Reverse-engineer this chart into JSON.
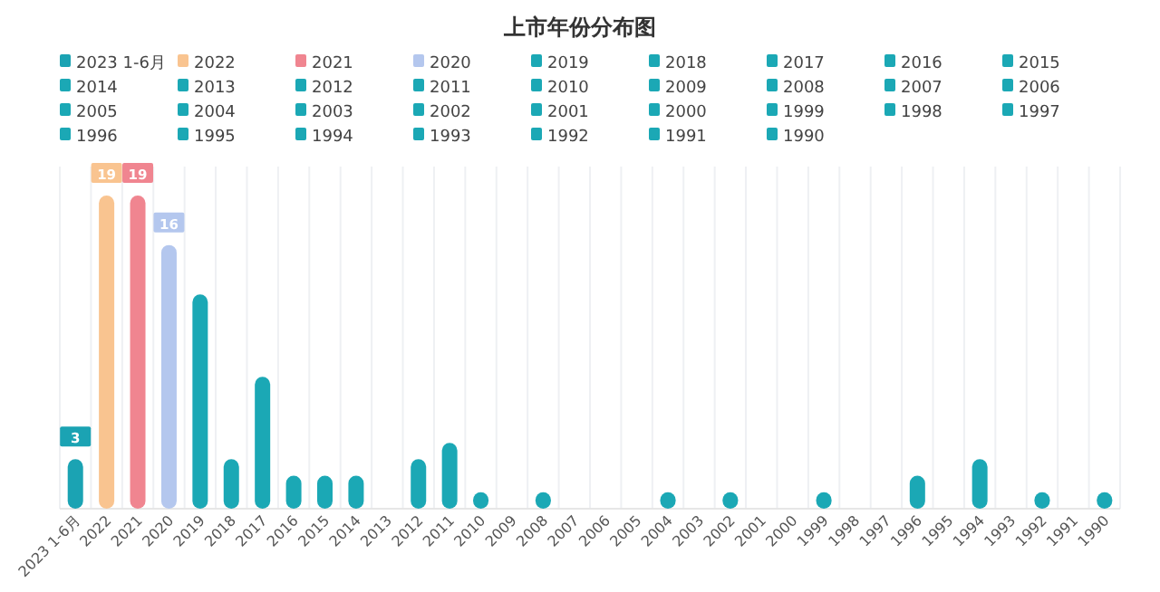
{
  "chart_data": {
    "type": "bar",
    "title": "上市年份分布图",
    "categories": [
      "2023 1-6月",
      "2022",
      "2021",
      "2020",
      "2019",
      "2018",
      "2017",
      "2016",
      "2015",
      "2014",
      "2013",
      "2012",
      "2011",
      "2010",
      "2009",
      "2008",
      "2007",
      "2006",
      "2005",
      "2004",
      "2003",
      "2002",
      "2001",
      "2000",
      "1999",
      "1998",
      "1997",
      "1996",
      "1995",
      "1994",
      "1993",
      "1992",
      "1991",
      "1990"
    ],
    "series": [
      {
        "name": "2023 1-6月",
        "color": "#1ba3b3",
        "values": [
          3,
          null,
          null,
          null,
          null,
          null,
          null,
          null,
          null,
          null,
          null,
          null,
          null,
          null,
          null,
          null,
          null,
          null,
          null,
          null,
          null,
          null,
          null,
          null,
          null,
          null,
          null,
          null,
          null,
          null,
          null,
          null,
          null,
          null
        ],
        "value_labels": [
          "3",
          null,
          null,
          null,
          null,
          null,
          null,
          null,
          null,
          null,
          null,
          null,
          null,
          null,
          null,
          null,
          null,
          null,
          null,
          null,
          null,
          null,
          null,
          null,
          null,
          null,
          null,
          null,
          null,
          null,
          null,
          null,
          null,
          null
        ]
      },
      {
        "name": "2022",
        "color": "#f9c490",
        "values": [
          null,
          19,
          null,
          null,
          null,
          null,
          null,
          null,
          null,
          null,
          null,
          null,
          null,
          null,
          null,
          null,
          null,
          null,
          null,
          null,
          null,
          null,
          null,
          null,
          null,
          null,
          null,
          null,
          null,
          null,
          null,
          null,
          null,
          null
        ],
        "value_labels": [
          null,
          "19",
          null,
          null,
          null,
          null,
          null,
          null,
          null,
          null,
          null,
          null,
          null,
          null,
          null,
          null,
          null,
          null,
          null,
          null,
          null,
          null,
          null,
          null,
          null,
          null,
          null,
          null,
          null,
          null,
          null,
          null,
          null,
          null
        ]
      },
      {
        "name": "2021",
        "color": "#f08590",
        "values": [
          null,
          null,
          19,
          null,
          null,
          null,
          null,
          null,
          null,
          null,
          null,
          null,
          null,
          null,
          null,
          null,
          null,
          null,
          null,
          null,
          null,
          null,
          null,
          null,
          null,
          null,
          null,
          null,
          null,
          null,
          null,
          null,
          null,
          null
        ],
        "value_labels": [
          null,
          null,
          "19",
          null,
          null,
          null,
          null,
          null,
          null,
          null,
          null,
          null,
          null,
          null,
          null,
          null,
          null,
          null,
          null,
          null,
          null,
          null,
          null,
          null,
          null,
          null,
          null,
          null,
          null,
          null,
          null,
          null,
          null,
          null
        ]
      },
      {
        "name": "2020",
        "color": "#b4c7ee",
        "values": [
          null,
          null,
          null,
          16,
          null,
          null,
          null,
          null,
          null,
          null,
          null,
          null,
          null,
          null,
          null,
          null,
          null,
          null,
          null,
          null,
          null,
          null,
          null,
          null,
          null,
          null,
          null,
          null,
          null,
          null,
          null,
          null,
          null,
          null
        ],
        "value_labels": [
          null,
          null,
          null,
          "16",
          null,
          null,
          null,
          null,
          null,
          null,
          null,
          null,
          null,
          null,
          null,
          null,
          null,
          null,
          null,
          null,
          null,
          null,
          null,
          null,
          null,
          null,
          null,
          null,
          null,
          null,
          null,
          null,
          null,
          null
        ]
      },
      {
        "name": "2019",
        "color": "#1ba8b5",
        "values": [
          null,
          null,
          null,
          null,
          13,
          null,
          null,
          null,
          null,
          null,
          null,
          null,
          null,
          null,
          null,
          null,
          null,
          null,
          null,
          null,
          null,
          null,
          null,
          null,
          null,
          null,
          null,
          null,
          null,
          null,
          null,
          null,
          null,
          null
        ]
      },
      {
        "name": "2018",
        "color": "#1ba8b5",
        "values": [
          null,
          null,
          null,
          null,
          null,
          3,
          null,
          null,
          null,
          null,
          null,
          null,
          null,
          null,
          null,
          null,
          null,
          null,
          null,
          null,
          null,
          null,
          null,
          null,
          null,
          null,
          null,
          null,
          null,
          null,
          null,
          null,
          null,
          null
        ]
      },
      {
        "name": "2017",
        "color": "#1ba8b5",
        "values": [
          null,
          null,
          null,
          null,
          null,
          null,
          8,
          null,
          null,
          null,
          null,
          null,
          null,
          null,
          null,
          null,
          null,
          null,
          null,
          null,
          null,
          null,
          null,
          null,
          null,
          null,
          null,
          null,
          null,
          null,
          null,
          null,
          null,
          null
        ]
      },
      {
        "name": "2016",
        "color": "#1ba8b5",
        "values": [
          null,
          null,
          null,
          null,
          null,
          null,
          null,
          2,
          null,
          null,
          null,
          null,
          null,
          null,
          null,
          null,
          null,
          null,
          null,
          null,
          null,
          null,
          null,
          null,
          null,
          null,
          null,
          null,
          null,
          null,
          null,
          null,
          null,
          null
        ]
      },
      {
        "name": "2015",
        "color": "#1ba8b5",
        "values": [
          null,
          null,
          null,
          null,
          null,
          null,
          null,
          null,
          2,
          null,
          null,
          null,
          null,
          null,
          null,
          null,
          null,
          null,
          null,
          null,
          null,
          null,
          null,
          null,
          null,
          null,
          null,
          null,
          null,
          null,
          null,
          null,
          null,
          null
        ]
      },
      {
        "name": "2014",
        "color": "#1ba8b5",
        "values": [
          null,
          null,
          null,
          null,
          null,
          null,
          null,
          null,
          null,
          2,
          null,
          null,
          null,
          null,
          null,
          null,
          null,
          null,
          null,
          null,
          null,
          null,
          null,
          null,
          null,
          null,
          null,
          null,
          null,
          null,
          null,
          null,
          null,
          null
        ]
      },
      {
        "name": "2013",
        "color": "#1ba8b5",
        "values": [
          null,
          null,
          null,
          null,
          null,
          null,
          null,
          null,
          null,
          null,
          0,
          null,
          null,
          null,
          null,
          null,
          null,
          null,
          null,
          null,
          null,
          null,
          null,
          null,
          null,
          null,
          null,
          null,
          null,
          null,
          null,
          null,
          null,
          null
        ]
      },
      {
        "name": "2012",
        "color": "#1ba8b5",
        "values": [
          null,
          null,
          null,
          null,
          null,
          null,
          null,
          null,
          null,
          null,
          null,
          3,
          null,
          null,
          null,
          null,
          null,
          null,
          null,
          null,
          null,
          null,
          null,
          null,
          null,
          null,
          null,
          null,
          null,
          null,
          null,
          null,
          null,
          null
        ]
      },
      {
        "name": "2011",
        "color": "#1ba8b5",
        "values": [
          null,
          null,
          null,
          null,
          null,
          null,
          null,
          null,
          null,
          null,
          null,
          null,
          4,
          null,
          null,
          null,
          null,
          null,
          null,
          null,
          null,
          null,
          null,
          null,
          null,
          null,
          null,
          null,
          null,
          null,
          null,
          null,
          null,
          null
        ]
      },
      {
        "name": "2010",
        "color": "#1ba8b5",
        "values": [
          null,
          null,
          null,
          null,
          null,
          null,
          null,
          null,
          null,
          null,
          null,
          null,
          null,
          1,
          null,
          null,
          null,
          null,
          null,
          null,
          null,
          null,
          null,
          null,
          null,
          null,
          null,
          null,
          null,
          null,
          null,
          null,
          null,
          null
        ]
      },
      {
        "name": "2009",
        "color": "#1ba8b5",
        "values": [
          null,
          null,
          null,
          null,
          null,
          null,
          null,
          null,
          null,
          null,
          null,
          null,
          null,
          null,
          0,
          null,
          null,
          null,
          null,
          null,
          null,
          null,
          null,
          null,
          null,
          null,
          null,
          null,
          null,
          null,
          null,
          null,
          null,
          null
        ]
      },
      {
        "name": "2008",
        "color": "#1ba8b5",
        "values": [
          null,
          null,
          null,
          null,
          null,
          null,
          null,
          null,
          null,
          null,
          null,
          null,
          null,
          null,
          null,
          1,
          null,
          null,
          null,
          null,
          null,
          null,
          null,
          null,
          null,
          null,
          null,
          null,
          null,
          null,
          null,
          null,
          null,
          null
        ]
      },
      {
        "name": "2007",
        "color": "#1ba8b5",
        "values": [
          null,
          null,
          null,
          null,
          null,
          null,
          null,
          null,
          null,
          null,
          null,
          null,
          null,
          null,
          null,
          null,
          0,
          null,
          null,
          null,
          null,
          null,
          null,
          null,
          null,
          null,
          null,
          null,
          null,
          null,
          null,
          null,
          null,
          null
        ]
      },
      {
        "name": "2006",
        "color": "#1ba8b5",
        "values": [
          null,
          null,
          null,
          null,
          null,
          null,
          null,
          null,
          null,
          null,
          null,
          null,
          null,
          null,
          null,
          null,
          null,
          0,
          null,
          null,
          null,
          null,
          null,
          null,
          null,
          null,
          null,
          null,
          null,
          null,
          null,
          null,
          null,
          null
        ]
      },
      {
        "name": "2005",
        "color": "#1ba8b5",
        "values": [
          null,
          null,
          null,
          null,
          null,
          null,
          null,
          null,
          null,
          null,
          null,
          null,
          null,
          null,
          null,
          null,
          null,
          null,
          0,
          null,
          null,
          null,
          null,
          null,
          null,
          null,
          null,
          null,
          null,
          null,
          null,
          null,
          null,
          null
        ]
      },
      {
        "name": "2004",
        "color": "#1ba8b5",
        "values": [
          null,
          null,
          null,
          null,
          null,
          null,
          null,
          null,
          null,
          null,
          null,
          null,
          null,
          null,
          null,
          null,
          null,
          null,
          null,
          1,
          null,
          null,
          null,
          null,
          null,
          null,
          null,
          null,
          null,
          null,
          null,
          null,
          null,
          null
        ]
      },
      {
        "name": "2003",
        "color": "#1ba8b5",
        "values": [
          null,
          null,
          null,
          null,
          null,
          null,
          null,
          null,
          null,
          null,
          null,
          null,
          null,
          null,
          null,
          null,
          null,
          null,
          null,
          null,
          0,
          null,
          null,
          null,
          null,
          null,
          null,
          null,
          null,
          null,
          null,
          null,
          null,
          null
        ]
      },
      {
        "name": "2002",
        "color": "#1ba8b5",
        "values": [
          null,
          null,
          null,
          null,
          null,
          null,
          null,
          null,
          null,
          null,
          null,
          null,
          null,
          null,
          null,
          null,
          null,
          null,
          null,
          null,
          null,
          1,
          null,
          null,
          null,
          null,
          null,
          null,
          null,
          null,
          null,
          null,
          null,
          null
        ]
      },
      {
        "name": "2001",
        "color": "#1ba8b5",
        "values": [
          null,
          null,
          null,
          null,
          null,
          null,
          null,
          null,
          null,
          null,
          null,
          null,
          null,
          null,
          null,
          null,
          null,
          null,
          null,
          null,
          null,
          null,
          0,
          null,
          null,
          null,
          null,
          null,
          null,
          null,
          null,
          null,
          null,
          null
        ]
      },
      {
        "name": "2000",
        "color": "#1ba8b5",
        "values": [
          null,
          null,
          null,
          null,
          null,
          null,
          null,
          null,
          null,
          null,
          null,
          null,
          null,
          null,
          null,
          null,
          null,
          null,
          null,
          null,
          null,
          null,
          null,
          0,
          null,
          null,
          null,
          null,
          null,
          null,
          null,
          null,
          null,
          null
        ]
      },
      {
        "name": "1999",
        "color": "#1ba8b5",
        "values": [
          null,
          null,
          null,
          null,
          null,
          null,
          null,
          null,
          null,
          null,
          null,
          null,
          null,
          null,
          null,
          null,
          null,
          null,
          null,
          null,
          null,
          null,
          null,
          null,
          1,
          null,
          null,
          null,
          null,
          null,
          null,
          null,
          null,
          null
        ]
      },
      {
        "name": "1998",
        "color": "#1ba8b5",
        "values": [
          null,
          null,
          null,
          null,
          null,
          null,
          null,
          null,
          null,
          null,
          null,
          null,
          null,
          null,
          null,
          null,
          null,
          null,
          null,
          null,
          null,
          null,
          null,
          null,
          null,
          0,
          null,
          null,
          null,
          null,
          null,
          null,
          null,
          null
        ]
      },
      {
        "name": "1997",
        "color": "#1ba8b5",
        "values": [
          null,
          null,
          null,
          null,
          null,
          null,
          null,
          null,
          null,
          null,
          null,
          null,
          null,
          null,
          null,
          null,
          null,
          null,
          null,
          null,
          null,
          null,
          null,
          null,
          null,
          null,
          0,
          null,
          null,
          null,
          null,
          null,
          null,
          null
        ]
      },
      {
        "name": "1996",
        "color": "#1ba8b5",
        "values": [
          null,
          null,
          null,
          null,
          null,
          null,
          null,
          null,
          null,
          null,
          null,
          null,
          null,
          null,
          null,
          null,
          null,
          null,
          null,
          null,
          null,
          null,
          null,
          null,
          null,
          null,
          null,
          2,
          null,
          null,
          null,
          null,
          null,
          null
        ]
      },
      {
        "name": "1995",
        "color": "#1ba8b5",
        "values": [
          null,
          null,
          null,
          null,
          null,
          null,
          null,
          null,
          null,
          null,
          null,
          null,
          null,
          null,
          null,
          null,
          null,
          null,
          null,
          null,
          null,
          null,
          null,
          null,
          null,
          null,
          null,
          null,
          0,
          null,
          null,
          null,
          null,
          null
        ]
      },
      {
        "name": "1994",
        "color": "#1ba8b5",
        "values": [
          null,
          null,
          null,
          null,
          null,
          null,
          null,
          null,
          null,
          null,
          null,
          null,
          null,
          null,
          null,
          null,
          null,
          null,
          null,
          null,
          null,
          null,
          null,
          null,
          null,
          null,
          null,
          null,
          null,
          3,
          null,
          null,
          null,
          null
        ]
      },
      {
        "name": "1993",
        "color": "#1ba8b5",
        "values": [
          null,
          null,
          null,
          null,
          null,
          null,
          null,
          null,
          null,
          null,
          null,
          null,
          null,
          null,
          null,
          null,
          null,
          null,
          null,
          null,
          null,
          null,
          null,
          null,
          null,
          null,
          null,
          null,
          null,
          null,
          0,
          null,
          null,
          null
        ]
      },
      {
        "name": "1992",
        "color": "#1ba8b5",
        "values": [
          null,
          null,
          null,
          null,
          null,
          null,
          null,
          null,
          null,
          null,
          null,
          null,
          null,
          null,
          null,
          null,
          null,
          null,
          null,
          null,
          null,
          null,
          null,
          null,
          null,
          null,
          null,
          null,
          null,
          null,
          null,
          1,
          null,
          null
        ]
      },
      {
        "name": "1991",
        "color": "#1ba8b5",
        "values": [
          null,
          null,
          null,
          null,
          null,
          null,
          null,
          null,
          null,
          null,
          null,
          null,
          null,
          null,
          null,
          null,
          null,
          null,
          null,
          null,
          null,
          null,
          null,
          null,
          null,
          null,
          null,
          null,
          null,
          null,
          null,
          null,
          0,
          null
        ]
      },
      {
        "name": "1990",
        "color": "#1ba8b5",
        "values": [
          null,
          null,
          null,
          null,
          null,
          null,
          null,
          null,
          null,
          null,
          null,
          null,
          null,
          null,
          null,
          null,
          null,
          null,
          null,
          null,
          null,
          null,
          null,
          null,
          null,
          null,
          null,
          null,
          null,
          null,
          null,
          null,
          null,
          1
        ]
      }
    ],
    "legend": "top",
    "grid": "x"
  }
}
